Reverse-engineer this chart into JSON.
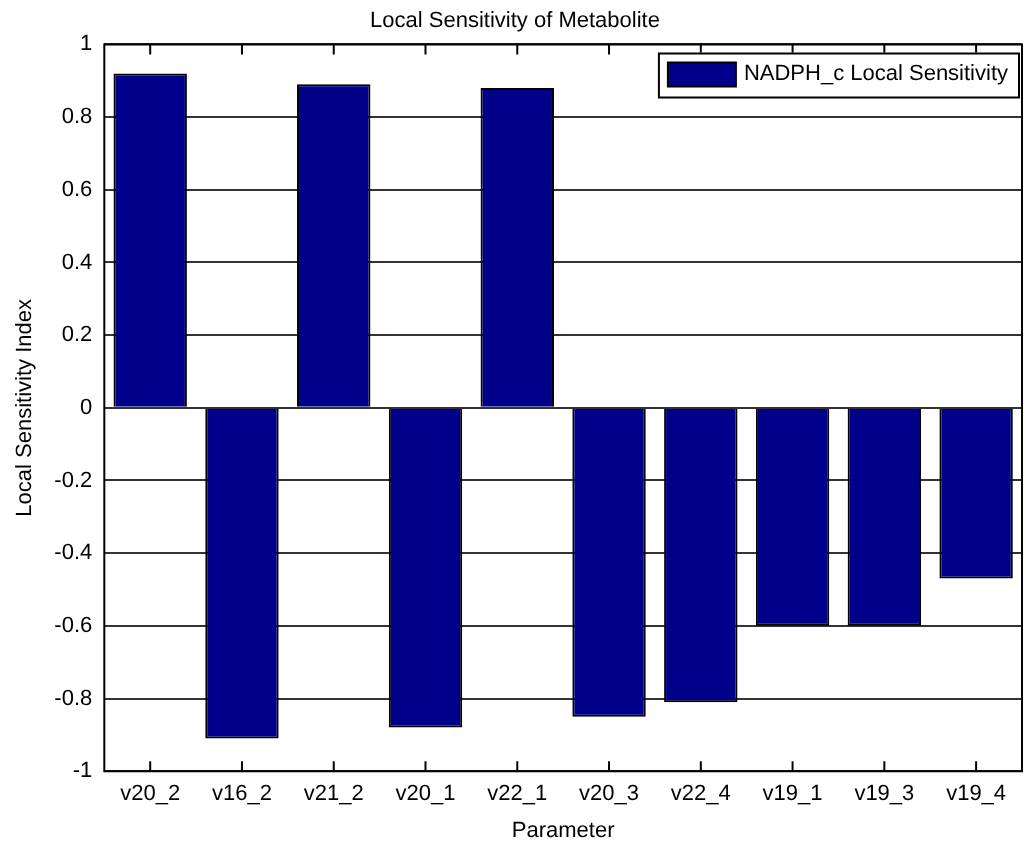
{
  "chart_data": {
    "type": "bar",
    "title": "Local Sensitivity of Metabolite",
    "xlabel": "Parameter",
    "ylabel": "Local Sensitivity Index",
    "categories": [
      "v20_2",
      "v16_2",
      "v21_2",
      "v20_1",
      "v22_1",
      "v20_3",
      "v22_4",
      "v19_1",
      "v19_3",
      "v19_4"
    ],
    "series": [
      {
        "name": "NADPH_c Local Sensitivity",
        "color": "#00008b",
        "values": [
          0.92,
          -0.91,
          0.89,
          -0.88,
          0.88,
          -0.85,
          -0.81,
          -0.6,
          -0.6,
          -0.47
        ]
      }
    ],
    "ylim": [
      -1,
      1
    ],
    "yticks": [
      -1,
      -0.8,
      -0.6,
      -0.4,
      -0.2,
      0,
      0.2,
      0.4,
      0.6,
      0.8,
      1
    ],
    "grid": "y",
    "legend": "top right"
  }
}
